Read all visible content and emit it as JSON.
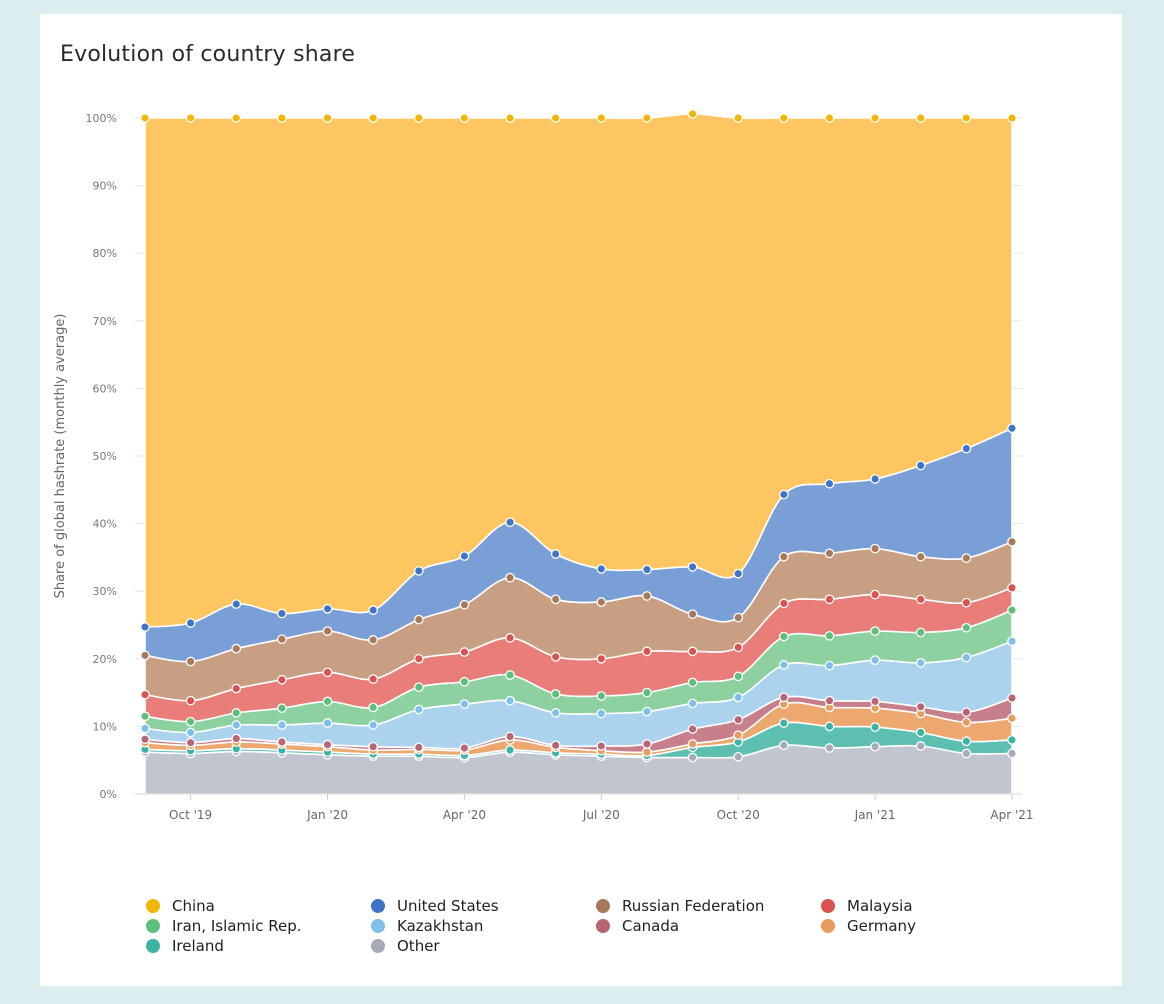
{
  "chart_data": {
    "type": "area",
    "stacked": true,
    "title": "Evolution of country share",
    "ylabel": "Share of global hashrate (monthly average)",
    "xlabel": "",
    "ylim": [
      0,
      100
    ],
    "y_ticks": [
      "0%",
      "10%",
      "20%",
      "30%",
      "40%",
      "50%",
      "60%",
      "70%",
      "80%",
      "90%",
      "100%"
    ],
    "x": [
      "Sep '19",
      "Oct '19",
      "Nov '19",
      "Dec '19",
      "Jan '20",
      "Feb '20",
      "Mar '20",
      "Apr '20",
      "May '20",
      "Jun '20",
      "Jul '20",
      "Aug '20",
      "Sep '20",
      "Oct '20",
      "Nov '20",
      "Dec '20",
      "Jan '21",
      "Feb '21",
      "Mar '21",
      "Apr '21"
    ],
    "x_tick_labels": [
      {
        "index": 1,
        "label": "Oct '19"
      },
      {
        "index": 4,
        "label": "Jan '20"
      },
      {
        "index": 7,
        "label": "Apr '20"
      },
      {
        "index": 10,
        "label": "Jul '20"
      },
      {
        "index": 13,
        "label": "Oct '20"
      },
      {
        "index": 16,
        "label": "Jan '21"
      },
      {
        "index": 19,
        "label": "Apr '21"
      }
    ],
    "series": [
      {
        "name": "Other",
        "color": "#c1c5d0",
        "values": [
          6.2,
          6.0,
          6.3,
          6.1,
          5.8,
          5.6,
          5.6,
          5.4,
          6.2,
          5.8,
          5.6,
          5.4,
          5.4,
          5.5,
          7.2,
          6.8,
          7.0,
          7.1,
          6.0,
          6.0
        ]
      },
      {
        "name": "Ireland",
        "color": "#5cbfb2",
        "values": [
          0.4,
          0.4,
          0.4,
          0.4,
          0.4,
          0.3,
          0.3,
          0.3,
          0.3,
          0.3,
          0.3,
          0.3,
          1.5,
          2.2,
          3.3,
          3.2,
          2.9,
          2.0,
          1.8,
          2.0
        ]
      },
      {
        "name": "Germany",
        "color": "#eda870",
        "values": [
          1.0,
          0.8,
          1.0,
          0.9,
          0.8,
          0.6,
          0.7,
          0.8,
          1.5,
          0.8,
          0.5,
          0.5,
          0.5,
          1.0,
          2.8,
          2.8,
          2.8,
          2.8,
          2.8,
          3.2
        ]
      },
      {
        "name": "Canada",
        "color": "#c77f8c",
        "values": [
          0.5,
          0.4,
          0.5,
          0.3,
          0.3,
          0.5,
          0.3,
          0.3,
          0.5,
          0.3,
          0.7,
          1.2,
          2.2,
          2.3,
          1.0,
          1.0,
          1.0,
          1.0,
          1.5,
          3.0
        ]
      },
      {
        "name": "Kazakhstan",
        "color": "#abd3ee",
        "values": [
          1.6,
          1.5,
          2.0,
          2.5,
          3.2,
          3.2,
          5.6,
          6.5,
          5.3,
          4.8,
          4.8,
          4.8,
          3.8,
          3.3,
          4.8,
          5.2,
          6.1,
          6.5,
          8.1,
          8.4
        ]
      },
      {
        "name": "Iran, Islamic Rep.",
        "color": "#8dd1a0",
        "values": [
          1.8,
          1.6,
          1.8,
          2.5,
          3.2,
          2.6,
          3.3,
          3.3,
          3.8,
          2.8,
          2.6,
          2.8,
          3.1,
          3.1,
          4.2,
          4.4,
          4.3,
          4.5,
          4.4,
          4.6
        ]
      },
      {
        "name": "Malaysia",
        "color": "#e87d7a",
        "values": [
          3.2,
          3.1,
          3.6,
          4.2,
          4.3,
          4.2,
          4.2,
          4.4,
          5.5,
          5.5,
          5.5,
          6.1,
          4.6,
          4.3,
          4.9,
          5.4,
          5.4,
          4.9,
          3.7,
          3.3
        ]
      },
      {
        "name": "Russian Federation",
        "color": "#c99f84",
        "values": [
          5.8,
          5.8,
          5.9,
          6.0,
          6.1,
          5.8,
          5.8,
          7.0,
          8.9,
          8.5,
          8.4,
          8.2,
          5.5,
          4.4,
          6.9,
          6.8,
          6.8,
          6.3,
          6.6,
          6.8
        ]
      },
      {
        "name": "United States",
        "color": "#7a9fd6",
        "values": [
          4.2,
          5.7,
          6.6,
          3.8,
          3.3,
          4.4,
          7.2,
          7.2,
          8.2,
          6.7,
          4.9,
          3.9,
          7.0,
          6.5,
          9.2,
          10.3,
          10.3,
          13.5,
          16.2,
          16.8
        ]
      },
      {
        "name": "China",
        "color": "#fdc660",
        "values": [
          75.3,
          74.7,
          71.9,
          73.3,
          72.6,
          72.8,
          67.0,
          64.8,
          59.8,
          64.5,
          66.7,
          66.8,
          67.0,
          67.4,
          55.7,
          54.1,
          53.4,
          51.4,
          48.9,
          45.9
        ]
      }
    ],
    "marker_colors": {
      "China": "#f2b705",
      "United States": "#3f74c9",
      "Russian Federation": "#a9795b",
      "Malaysia": "#d95451",
      "Iran, Islamic Rep.": "#5cbf7d",
      "Kazakhstan": "#7ec0ea",
      "Canada": "#b86576",
      "Germany": "#e89b5e",
      "Ireland": "#3cb3a3",
      "Other": "#a6abb9"
    },
    "legend": [
      {
        "name": "China",
        "color": "#f2b705"
      },
      {
        "name": "United States",
        "color": "#3f74c9"
      },
      {
        "name": "Russian Federation",
        "color": "#a9795b"
      },
      {
        "name": "Malaysia",
        "color": "#d95451"
      },
      {
        "name": "Iran, Islamic Rep.",
        "color": "#5cbf7d"
      },
      {
        "name": "Kazakhstan",
        "color": "#7ec0ea"
      },
      {
        "name": "Canada",
        "color": "#b86576"
      },
      {
        "name": "Germany",
        "color": "#e89b5e"
      },
      {
        "name": "Ireland",
        "color": "#3cb3a3"
      },
      {
        "name": "Other",
        "color": "#a6abb9"
      }
    ],
    "legend_position": "bottom"
  }
}
